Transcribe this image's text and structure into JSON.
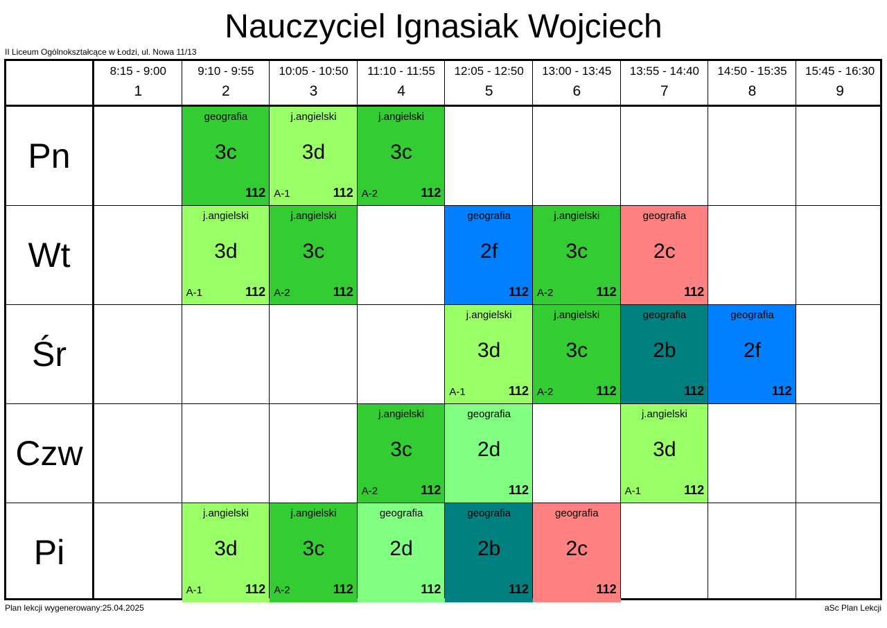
{
  "header": {
    "title": "Nauczyciel Ignasiak Wojciech",
    "school": "II Liceum Ogólnokształcące w Łodzi, ul. Nowa 11/13"
  },
  "footer": {
    "generated": "Plan lekcji wygenerowany:25.04.2025",
    "brand": "aSc Plan Lekcji"
  },
  "colors": {
    "dark_green": "#33cc33",
    "light_green": "#99ff66",
    "mint": "#80ff80",
    "blue": "#0080ff",
    "salmon": "#ff8080",
    "teal": "#008080"
  },
  "periods": [
    {
      "time": "8:15 - 9:00",
      "num": "1"
    },
    {
      "time": "9:10 - 9:55",
      "num": "2"
    },
    {
      "time": "10:05 - 10:50",
      "num": "3"
    },
    {
      "time": "11:10 - 11:55",
      "num": "4"
    },
    {
      "time": "12:05 - 12:50",
      "num": "5"
    },
    {
      "time": "13:00 - 13:45",
      "num": "6"
    },
    {
      "time": "13:55 - 14:40",
      "num": "7"
    },
    {
      "time": "14:50 - 15:35",
      "num": "8"
    },
    {
      "time": "15:45 - 16:30",
      "num": "9"
    }
  ],
  "days": [
    "Pn",
    "Wt",
    "Śr",
    "Czw",
    "Pi"
  ],
  "lessons": [
    {
      "day": 0,
      "period": 2,
      "subject": "geografia",
      "class": "3c",
      "group": "",
      "room": "112",
      "color": "#33cc33"
    },
    {
      "day": 0,
      "period": 3,
      "subject": "j.angielski",
      "class": "3d",
      "group": "A-1",
      "room": "112",
      "color": "#99ff66"
    },
    {
      "day": 0,
      "period": 4,
      "subject": "j.angielski",
      "class": "3c",
      "group": "A-2",
      "room": "112",
      "color": "#33cc33"
    },
    {
      "day": 1,
      "period": 2,
      "subject": "j.angielski",
      "class": "3d",
      "group": "A-1",
      "room": "112",
      "color": "#99ff66"
    },
    {
      "day": 1,
      "period": 3,
      "subject": "j.angielski",
      "class": "3c",
      "group": "A-2",
      "room": "112",
      "color": "#33cc33"
    },
    {
      "day": 1,
      "period": 5,
      "subject": "geografia",
      "class": "2f",
      "group": "",
      "room": "112",
      "color": "#0080ff"
    },
    {
      "day": 1,
      "period": 6,
      "subject": "j.angielski",
      "class": "3c",
      "group": "A-2",
      "room": "112",
      "color": "#33cc33"
    },
    {
      "day": 1,
      "period": 7,
      "subject": "geografia",
      "class": "2c",
      "group": "",
      "room": "112",
      "color": "#ff8080"
    },
    {
      "day": 2,
      "period": 5,
      "subject": "j.angielski",
      "class": "3d",
      "group": "A-1",
      "room": "112",
      "color": "#99ff66"
    },
    {
      "day": 2,
      "period": 6,
      "subject": "j.angielski",
      "class": "3c",
      "group": "A-2",
      "room": "112",
      "color": "#33cc33"
    },
    {
      "day": 2,
      "period": 7,
      "subject": "geografia",
      "class": "2b",
      "group": "",
      "room": "112",
      "color": "#008080"
    },
    {
      "day": 2,
      "period": 8,
      "subject": "geografia",
      "class": "2f",
      "group": "",
      "room": "112",
      "color": "#0080ff"
    },
    {
      "day": 3,
      "period": 4,
      "subject": "j.angielski",
      "class": "3c",
      "group": "A-2",
      "room": "112",
      "color": "#33cc33"
    },
    {
      "day": 3,
      "period": 5,
      "subject": "geografia",
      "class": "2d",
      "group": "",
      "room": "112",
      "color": "#80ff80"
    },
    {
      "day": 3,
      "period": 7,
      "subject": "j.angielski",
      "class": "3d",
      "group": "A-1",
      "room": "112",
      "color": "#99ff66"
    },
    {
      "day": 4,
      "period": 2,
      "subject": "j.angielski",
      "class": "3d",
      "group": "A-1",
      "room": "112",
      "color": "#99ff66"
    },
    {
      "day": 4,
      "period": 3,
      "subject": "j.angielski",
      "class": "3c",
      "group": "A-2",
      "room": "112",
      "color": "#33cc33"
    },
    {
      "day": 4,
      "period": 4,
      "subject": "geografia",
      "class": "2d",
      "group": "",
      "room": "112",
      "color": "#80ff80"
    },
    {
      "day": 4,
      "period": 5,
      "subject": "geografia",
      "class": "2b",
      "group": "",
      "room": "112",
      "color": "#008080"
    },
    {
      "day": 4,
      "period": 6,
      "subject": "geografia",
      "class": "2c",
      "group": "",
      "room": "112",
      "color": "#ff8080"
    }
  ]
}
